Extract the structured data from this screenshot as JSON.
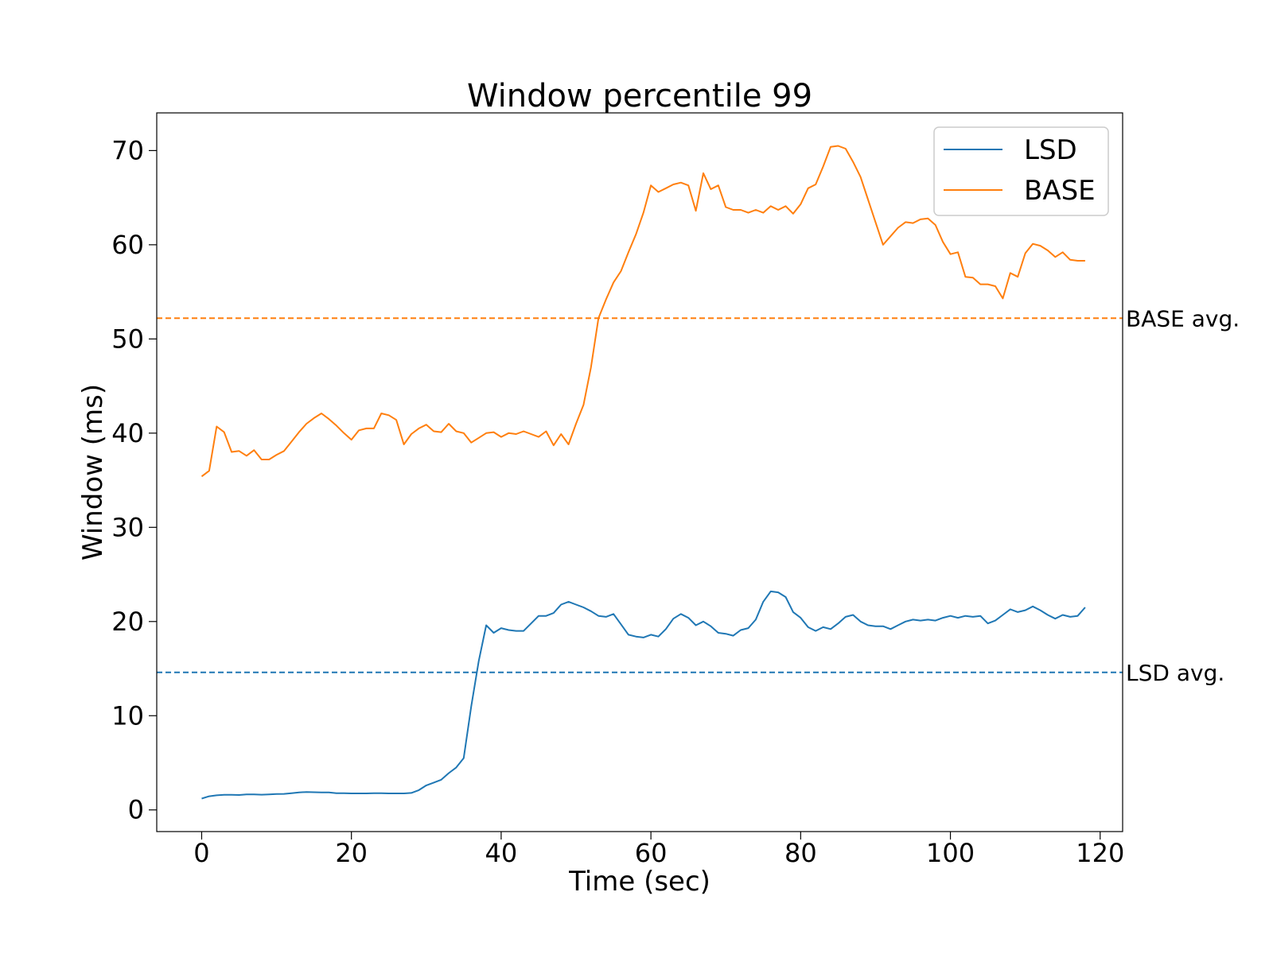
{
  "chart_data": {
    "type": "line",
    "title": "Window percentile 99",
    "xlabel": "Time (sec)",
    "ylabel": "Window (ms)",
    "xlim": [
      -6,
      123
    ],
    "ylim": [
      -2.3,
      74
    ],
    "xticks": [
      0,
      20,
      40,
      60,
      80,
      100,
      120
    ],
    "yticks": [
      0,
      10,
      20,
      30,
      40,
      50,
      60,
      70
    ],
    "grid": false,
    "legend_position": "top-right",
    "series": [
      {
        "name": "LSD",
        "color": "#1f77b4",
        "x": [
          0,
          1,
          2,
          3,
          4,
          5,
          6,
          7,
          8,
          9,
          10,
          11,
          12,
          13,
          14,
          15,
          16,
          17,
          18,
          19,
          20,
          21,
          22,
          23,
          24,
          25,
          26,
          27,
          28,
          29,
          30,
          31,
          32,
          33,
          34,
          35,
          36,
          37,
          38,
          39,
          40,
          41,
          42,
          43,
          44,
          45,
          46,
          47,
          48,
          49,
          50,
          51,
          52,
          53,
          54,
          55,
          56,
          57,
          58,
          59,
          60,
          61,
          62,
          63,
          64,
          65,
          66,
          67,
          68,
          69,
          70,
          71,
          72,
          73,
          74,
          75,
          76,
          77,
          78,
          79,
          80,
          81,
          82,
          83,
          84,
          85,
          86,
          87,
          88,
          89,
          90,
          91,
          92,
          93,
          94,
          95,
          96,
          97,
          98,
          99,
          100,
          101,
          102,
          103,
          104,
          105,
          106,
          107,
          108,
          109,
          110,
          111,
          112,
          113,
          114,
          115,
          116,
          117,
          118
        ],
        "y": [
          1.2,
          1.45,
          1.55,
          1.6,
          1.6,
          1.58,
          1.65,
          1.65,
          1.62,
          1.65,
          1.68,
          1.7,
          1.78,
          1.85,
          1.9,
          1.88,
          1.85,
          1.85,
          1.78,
          1.78,
          1.75,
          1.75,
          1.75,
          1.78,
          1.78,
          1.75,
          1.75,
          1.75,
          1.8,
          2.1,
          2.6,
          2.9,
          3.2,
          3.9,
          4.5,
          5.5,
          11.0,
          15.8,
          19.6,
          18.8,
          19.3,
          19.1,
          19.0,
          19.0,
          19.8,
          20.6,
          20.6,
          20.9,
          21.8,
          22.1,
          21.8,
          21.5,
          21.1,
          20.6,
          20.5,
          20.8,
          19.7,
          18.6,
          18.4,
          18.3,
          18.6,
          18.4,
          19.2,
          20.3,
          20.8,
          20.4,
          19.6,
          20.0,
          19.5,
          18.8,
          18.7,
          18.5,
          19.1,
          19.3,
          20.2,
          22.1,
          23.2,
          23.1,
          22.6,
          21.0,
          20.4,
          19.4,
          19.0,
          19.4,
          19.2,
          19.8,
          20.5,
          20.7,
          20.0,
          19.6,
          19.5,
          19.5,
          19.2,
          19.6,
          20.0,
          20.2,
          20.1,
          20.2,
          20.1,
          20.4,
          20.6,
          20.4,
          20.6,
          20.5,
          20.6,
          19.8,
          20.1,
          20.7,
          21.3,
          21.0,
          21.2,
          21.6,
          21.2,
          20.7,
          20.3,
          20.7,
          20.5,
          20.6,
          21.5
        ]
      },
      {
        "name": "BASE",
        "color": "#ff7f0e",
        "x": [
          0,
          1,
          2,
          3,
          4,
          5,
          6,
          7,
          8,
          9,
          10,
          11,
          12,
          13,
          14,
          15,
          16,
          17,
          18,
          19,
          20,
          21,
          22,
          23,
          24,
          25,
          26,
          27,
          28,
          29,
          30,
          31,
          32,
          33,
          34,
          35,
          36,
          37,
          38,
          39,
          40,
          41,
          42,
          43,
          44,
          45,
          46,
          47,
          48,
          49,
          50,
          51,
          52,
          53,
          54,
          55,
          56,
          57,
          58,
          59,
          60,
          61,
          62,
          63,
          64,
          65,
          66,
          67,
          68,
          69,
          70,
          71,
          72,
          73,
          74,
          75,
          76,
          77,
          78,
          79,
          80,
          81,
          82,
          83,
          84,
          85,
          86,
          87,
          88,
          89,
          90,
          91,
          92,
          93,
          94,
          95,
          96,
          97,
          98,
          99,
          100,
          101,
          102,
          103,
          104,
          105,
          106,
          107,
          108,
          109,
          110,
          111,
          112,
          113,
          114,
          115,
          116,
          117,
          118
        ],
        "y": [
          35.4,
          36.0,
          40.7,
          40.1,
          38.0,
          38.1,
          37.6,
          38.2,
          37.2,
          37.2,
          37.7,
          38.1,
          39.1,
          40.1,
          41.0,
          41.6,
          42.1,
          41.5,
          40.8,
          40.0,
          39.3,
          40.3,
          40.5,
          40.5,
          42.1,
          41.9,
          41.4,
          38.8,
          39.9,
          40.5,
          40.9,
          40.2,
          40.1,
          41.0,
          40.2,
          40.0,
          39.0,
          39.5,
          40.0,
          40.1,
          39.6,
          40.0,
          39.9,
          40.2,
          39.9,
          39.6,
          40.2,
          38.7,
          39.9,
          38.8,
          41.0,
          43.0,
          47.0,
          52.2,
          54.2,
          56.0,
          57.2,
          59.2,
          61.1,
          63.4,
          66.3,
          65.6,
          66.0,
          66.4,
          66.6,
          66.3,
          63.6,
          67.6,
          65.9,
          66.3,
          64.0,
          63.7,
          63.7,
          63.4,
          63.7,
          63.4,
          64.1,
          63.7,
          64.1,
          63.3,
          64.3,
          66.0,
          66.4,
          68.3,
          70.4,
          70.5,
          70.2,
          68.8,
          67.2,
          64.8,
          62.4,
          60.0,
          60.9,
          61.8,
          62.4,
          62.3,
          62.7,
          62.8,
          62.1,
          60.3,
          59.0,
          59.2,
          56.6,
          56.5,
          55.8,
          55.8,
          55.6,
          54.3,
          57.0,
          56.6,
          59.1,
          60.1,
          59.9,
          59.4,
          58.7,
          59.2,
          58.4,
          58.3,
          58.3
        ]
      }
    ],
    "reference_lines": [
      {
        "label": "BASE avg.",
        "y": 52.2,
        "color": "#ff7f0e",
        "style": "dashed"
      },
      {
        "label": "LSD avg.",
        "y": 14.6,
        "color": "#1f77b4",
        "style": "dashed"
      }
    ]
  }
}
